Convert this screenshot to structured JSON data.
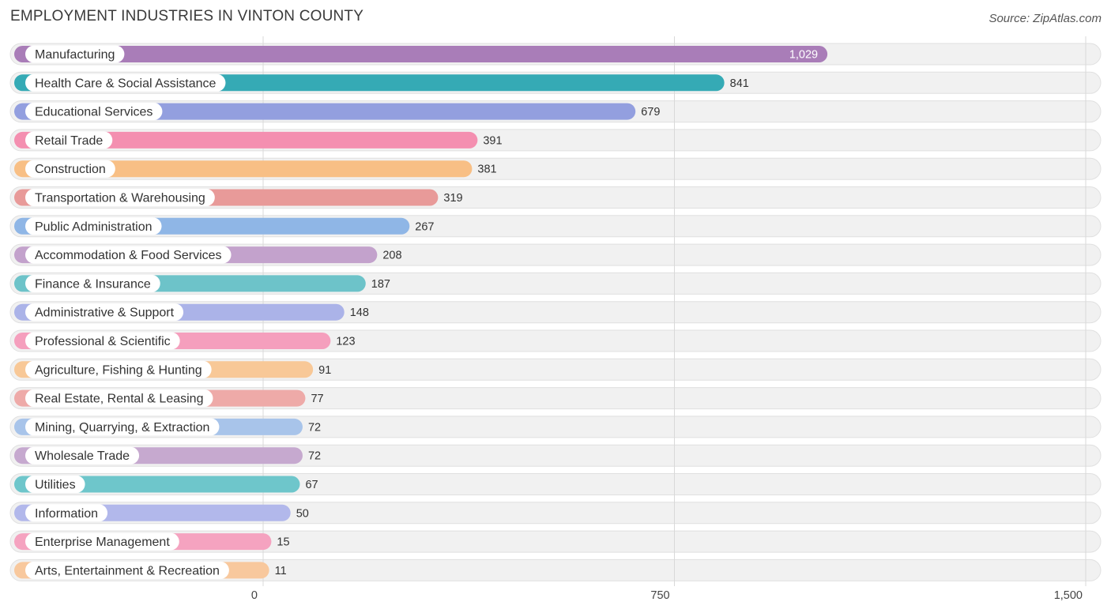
{
  "title": "EMPLOYMENT INDUSTRIES IN VINTON COUNTY",
  "source": "Source: ZipAtlas.com",
  "chart_data": {
    "type": "bar",
    "orientation": "horizontal",
    "title": "EMPLOYMENT INDUSTRIES IN VINTON COUNTY",
    "xlabel": "",
    "ylabel": "",
    "xlim": [
      0,
      1500
    ],
    "ticks": [
      0,
      750,
      1500
    ],
    "tick_labels": [
      "0",
      "750",
      "1,500"
    ],
    "grid": true,
    "categories": [
      "Manufacturing",
      "Health Care & Social Assistance",
      "Educational Services",
      "Retail Trade",
      "Construction",
      "Transportation & Warehousing",
      "Public Administration",
      "Accommodation & Food Services",
      "Finance & Insurance",
      "Administrative & Support",
      "Professional & Scientific",
      "Agriculture, Fishing & Hunting",
      "Real Estate, Rental & Leasing",
      "Mining, Quarrying, & Extraction",
      "Wholesale Trade",
      "Utilities",
      "Information",
      "Enterprise Management",
      "Arts, Entertainment & Recreation"
    ],
    "values": [
      1029,
      841,
      679,
      391,
      381,
      319,
      267,
      208,
      187,
      148,
      123,
      91,
      77,
      72,
      72,
      67,
      50,
      15,
      11
    ],
    "value_labels": [
      "1,029",
      "841",
      "679",
      "391",
      "381",
      "319",
      "267",
      "208",
      "187",
      "148",
      "123",
      "91",
      "77",
      "72",
      "72",
      "67",
      "50",
      "15",
      "11"
    ],
    "colors": [
      "#a97db8",
      "#35aab5",
      "#939fdf",
      "#f48fb0",
      "#f8bf85",
      "#e89a99",
      "#8fb6e6",
      "#c3a2cc",
      "#6dc3c9",
      "#abb3e8",
      "#f59fbd",
      "#f8c897",
      "#eeaaa8",
      "#a8c4ea",
      "#c6a9cf",
      "#6ec6cb",
      "#b2b8eb",
      "#f5a3c0",
      "#f8c89d"
    ]
  }
}
